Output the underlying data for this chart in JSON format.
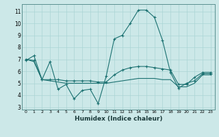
{
  "xlabel": "Humidex (Indice chaleur)",
  "bg_color": "#cce8e8",
  "grid_color": "#aad4d4",
  "line_color": "#1a7070",
  "xlim": [
    -0.5,
    23.5
  ],
  "ylim": [
    2.8,
    11.6
  ],
  "yticks": [
    3,
    4,
    5,
    6,
    7,
    8,
    9,
    10,
    11
  ],
  "xticks": [
    0,
    1,
    2,
    3,
    4,
    5,
    6,
    7,
    8,
    9,
    10,
    11,
    12,
    13,
    14,
    15,
    16,
    17,
    18,
    19,
    20,
    21,
    22,
    23
  ],
  "line1_x": [
    0,
    1,
    2,
    3,
    4,
    5,
    6,
    7,
    8,
    9,
    10,
    11,
    12,
    13,
    14,
    15,
    16,
    17,
    18,
    19,
    20,
    21,
    22,
    23
  ],
  "line1_y": [
    6.9,
    7.3,
    5.3,
    6.8,
    4.5,
    4.9,
    3.7,
    4.4,
    4.5,
    3.3,
    5.6,
    8.7,
    9.0,
    10.0,
    11.1,
    11.1,
    10.5,
    8.6,
    5.9,
    4.6,
    5.0,
    5.2,
    5.8,
    5.8
  ],
  "line2_x": [
    0,
    1,
    2,
    3,
    4,
    5,
    6,
    7,
    8,
    9,
    10,
    11,
    12,
    13,
    14,
    15,
    16,
    17,
    18,
    19,
    20,
    21,
    22,
    23
  ],
  "line2_y": [
    7.0,
    6.9,
    5.3,
    5.3,
    5.3,
    5.2,
    5.2,
    5.2,
    5.2,
    5.1,
    5.1,
    5.7,
    6.1,
    6.3,
    6.4,
    6.4,
    6.3,
    6.2,
    6.1,
    4.9,
    4.9,
    5.5,
    5.9,
    5.9
  ],
  "line3_x": [
    0,
    1,
    2,
    3,
    4,
    5,
    6,
    7,
    8,
    9,
    10,
    11,
    12,
    13,
    14,
    15,
    16,
    17,
    18,
    19,
    20,
    21,
    22,
    23
  ],
  "line3_y": [
    7.0,
    6.8,
    5.3,
    5.2,
    5.1,
    5.0,
    5.0,
    5.0,
    5.0,
    5.0,
    5.0,
    5.1,
    5.2,
    5.3,
    5.4,
    5.4,
    5.4,
    5.3,
    5.3,
    4.7,
    4.7,
    5.0,
    5.7,
    5.7
  ]
}
